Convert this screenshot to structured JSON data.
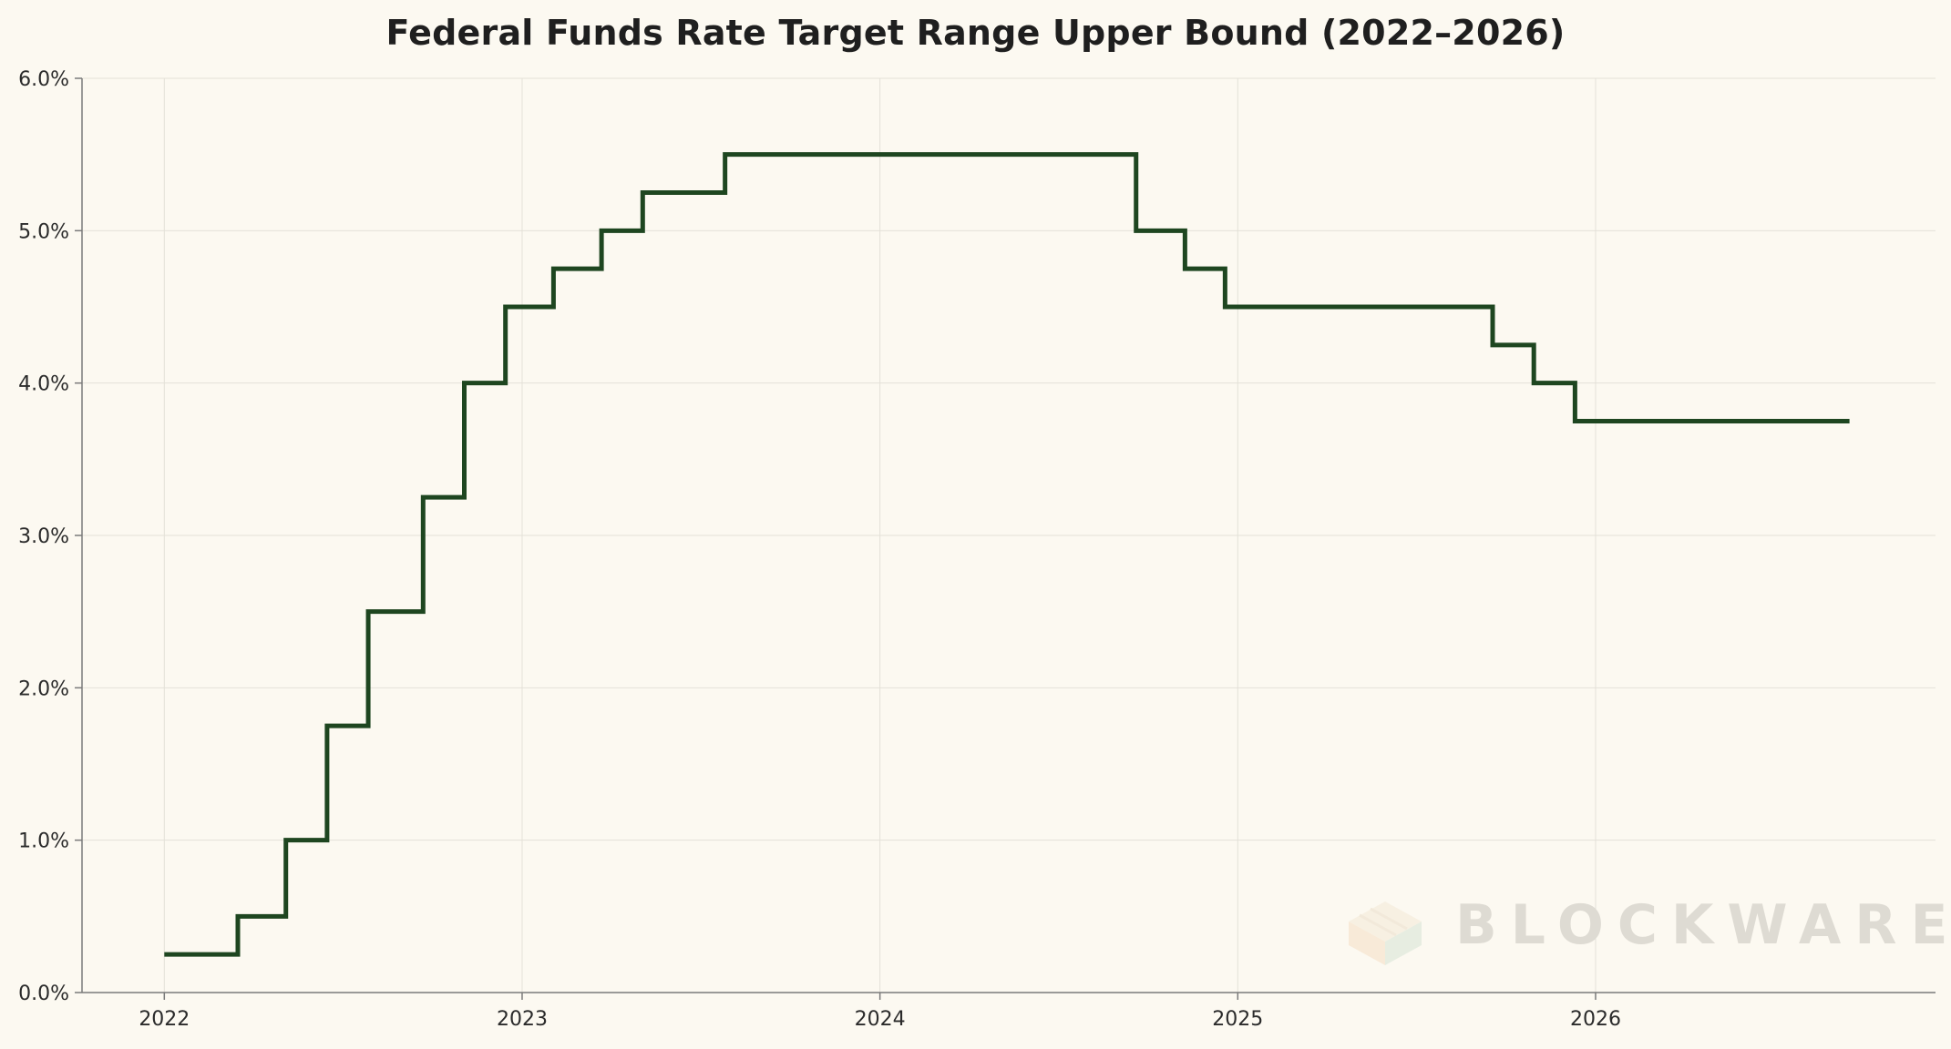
{
  "chart_data": {
    "type": "line",
    "step": "post",
    "title": "Federal Funds Rate Target Range Upper Bound (2022–2026)",
    "xlabel": "",
    "ylabel": "",
    "xlim": [
      2021.77,
      2026.95
    ],
    "ylim": [
      0,
      6
    ],
    "x_ticks": [
      2022,
      2023,
      2024,
      2025,
      2026
    ],
    "x_tick_labels": [
      "2022",
      "2023",
      "2024",
      "2025",
      "2026"
    ],
    "y_ticks": [
      0,
      1,
      2,
      3,
      4,
      5,
      6
    ],
    "y_tick_labels": [
      "0.0%",
      "1.0%",
      "2.0%",
      "3.0%",
      "4.0%",
      "5.0%",
      "6.0%"
    ],
    "grid": true,
    "series": [
      {
        "color": "#1e4620",
        "points": [
          {
            "x": "2022-01-01",
            "y": 0.25
          },
          {
            "x": "2022-03-17",
            "y": 0.5
          },
          {
            "x": "2022-05-05",
            "y": 1.0
          },
          {
            "x": "2022-06-16",
            "y": 1.75
          },
          {
            "x": "2022-07-28",
            "y": 2.5
          },
          {
            "x": "2022-09-22",
            "y": 3.25
          },
          {
            "x": "2022-11-03",
            "y": 4.0
          },
          {
            "x": "2022-12-15",
            "y": 4.5
          },
          {
            "x": "2023-02-02",
            "y": 4.75
          },
          {
            "x": "2023-03-23",
            "y": 5.0
          },
          {
            "x": "2023-05-04",
            "y": 5.25
          },
          {
            "x": "2023-07-27",
            "y": 5.5
          },
          {
            "x": "2024-09-19",
            "y": 5.0
          },
          {
            "x": "2024-11-08",
            "y": 4.75
          },
          {
            "x": "2024-12-19",
            "y": 4.5
          },
          {
            "x": "2025-09-18",
            "y": 4.25
          },
          {
            "x": "2025-10-30",
            "y": 4.0
          },
          {
            "x": "2025-12-11",
            "y": 3.75
          },
          {
            "x": "2026-09-17",
            "y": 3.75
          }
        ]
      }
    ]
  },
  "watermark": {
    "text": "BLOCKWARE",
    "icon": "cube-logo-icon"
  }
}
